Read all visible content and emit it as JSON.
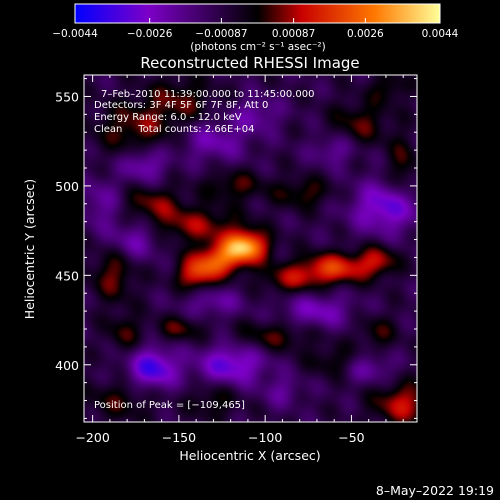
{
  "chart_data": {
    "type": "heatmap",
    "title": "Reconstructed RHESSI Image",
    "xlabel": "Heliocentric X (arcsec)",
    "ylabel": "Heliocentric Y (arcsec)",
    "xlim": [
      -205,
      -12
    ],
    "ylim": [
      368,
      562
    ],
    "x_ticks": [
      -200,
      -150,
      -100,
      -50
    ],
    "x_tick_labels": [
      "−200",
      "−150",
      "−100",
      "−50"
    ],
    "y_ticks": [
      400,
      450,
      500,
      550
    ],
    "y_tick_labels": [
      "400",
      "450",
      "500",
      "550"
    ],
    "colorbar": {
      "range": [
        -0.0044,
        0.0044
      ],
      "ticks": [
        -0.0044,
        -0.0026,
        -0.00087,
        0.00087,
        0.0026,
        0.0044
      ],
      "tick_labels": [
        "−0.0044",
        "−0.0026",
        "−0.00087",
        "0.00087",
        "0.0026",
        "0.0044"
      ],
      "units_label": "(photons cm⁻² s⁻¹ asec⁻²)",
      "stops": [
        "#0000ff",
        "#7d00c8",
        "#000000",
        "#c80000",
        "#ff7800",
        "#ffff9a"
      ]
    },
    "annotations": [
      "7–Feb–2010 11:39:00.000 to 11:45:00.000",
      "Detectors: 3F 4F 5F 6F 7F 8F, Att 0",
      "Energy Range: 6.0 – 12.0 keV",
      "Clean     Total counts: 2.66E+04"
    ],
    "peak_label": "Position of Peak = [−109,465]",
    "peak": {
      "x": -109,
      "y": 465
    },
    "blobs": [
      {
        "x": -112,
        "y": 466,
        "sx": 9,
        "sy": 6,
        "v": 0.0044
      },
      {
        "x": -128,
        "y": 458,
        "sx": 10,
        "sy": 6,
        "v": 0.0028
      },
      {
        "x": -140,
        "y": 450,
        "sx": 8,
        "sy": 6,
        "v": 0.0022
      },
      {
        "x": -60,
        "y": 454,
        "sx": 13,
        "sy": 6,
        "v": 0.0026
      },
      {
        "x": -85,
        "y": 448,
        "sx": 12,
        "sy": 6,
        "v": 0.0016
      },
      {
        "x": -35,
        "y": 458,
        "sx": 8,
        "sy": 6,
        "v": 0.0018
      },
      {
        "x": -140,
        "y": 478,
        "sx": 18,
        "sy": 7,
        "v": 0.0016
      },
      {
        "x": -165,
        "y": 490,
        "sx": 12,
        "sy": 7,
        "v": 0.0014
      },
      {
        "x": -118,
        "y": 500,
        "sx": 12,
        "sy": 6,
        "v": 0.0012
      },
      {
        "x": -78,
        "y": 496,
        "sx": 12,
        "sy": 6,
        "v": 0.0012
      },
      {
        "x": -175,
        "y": 532,
        "sx": 16,
        "sy": 10,
        "v": 0.0014
      },
      {
        "x": -150,
        "y": 548,
        "sx": 14,
        "sy": 9,
        "v": 0.0012
      },
      {
        "x": -45,
        "y": 535,
        "sx": 12,
        "sy": 9,
        "v": 0.0012
      },
      {
        "x": -28,
        "y": 555,
        "sx": 8,
        "sy": 6,
        "v": 0.001
      },
      {
        "x": -188,
        "y": 450,
        "sx": 9,
        "sy": 10,
        "v": 0.0014
      },
      {
        "x": -182,
        "y": 418,
        "sx": 7,
        "sy": 8,
        "v": 0.0011
      },
      {
        "x": -150,
        "y": 420,
        "sx": 10,
        "sy": 5,
        "v": 0.0012
      },
      {
        "x": -95,
        "y": 416,
        "sx": 16,
        "sy": 6,
        "v": 0.0012
      },
      {
        "x": -60,
        "y": 402,
        "sx": 10,
        "sy": 6,
        "v": 0.001
      },
      {
        "x": -35,
        "y": 418,
        "sx": 8,
        "sy": 7,
        "v": 0.001
      },
      {
        "x": -185,
        "y": 380,
        "sx": 14,
        "sy": 8,
        "v": 0.001
      },
      {
        "x": -130,
        "y": 380,
        "sx": 10,
        "sy": 7,
        "v": 0.001
      },
      {
        "x": -20,
        "y": 378,
        "sx": 12,
        "sy": 8,
        "v": 0.002
      },
      {
        "x": -20,
        "y": 510,
        "sx": 6,
        "sy": 12,
        "v": 0.0012
      },
      {
        "x": -170,
        "y": 512,
        "sx": 9,
        "sy": 7,
        "v": -0.0016
      },
      {
        "x": -130,
        "y": 525,
        "sx": 14,
        "sy": 8,
        "v": -0.0014
      },
      {
        "x": -105,
        "y": 540,
        "sx": 10,
        "sy": 7,
        "v": -0.0012
      },
      {
        "x": -30,
        "y": 488,
        "sx": 14,
        "sy": 10,
        "v": -0.0022
      },
      {
        "x": -60,
        "y": 520,
        "sx": 9,
        "sy": 6,
        "v": -0.0012
      },
      {
        "x": -175,
        "y": 470,
        "sx": 10,
        "sy": 8,
        "v": -0.0014
      },
      {
        "x": -130,
        "y": 435,
        "sx": 12,
        "sy": 6,
        "v": -0.0012
      },
      {
        "x": -120,
        "y": 400,
        "sx": 14,
        "sy": 8,
        "v": -0.0022
      },
      {
        "x": -165,
        "y": 398,
        "sx": 10,
        "sy": 8,
        "v": -0.0026
      },
      {
        "x": -70,
        "y": 430,
        "sx": 14,
        "sy": 7,
        "v": -0.0016
      },
      {
        "x": -40,
        "y": 398,
        "sx": 10,
        "sy": 6,
        "v": -0.0012
      },
      {
        "x": -195,
        "y": 490,
        "sx": 8,
        "sy": 10,
        "v": -0.0012
      },
      {
        "x": -90,
        "y": 385,
        "sx": 8,
        "sy": 6,
        "v": -0.001
      }
    ]
  },
  "footer": {
    "timestamp": "8–May–2022 19:19"
  }
}
